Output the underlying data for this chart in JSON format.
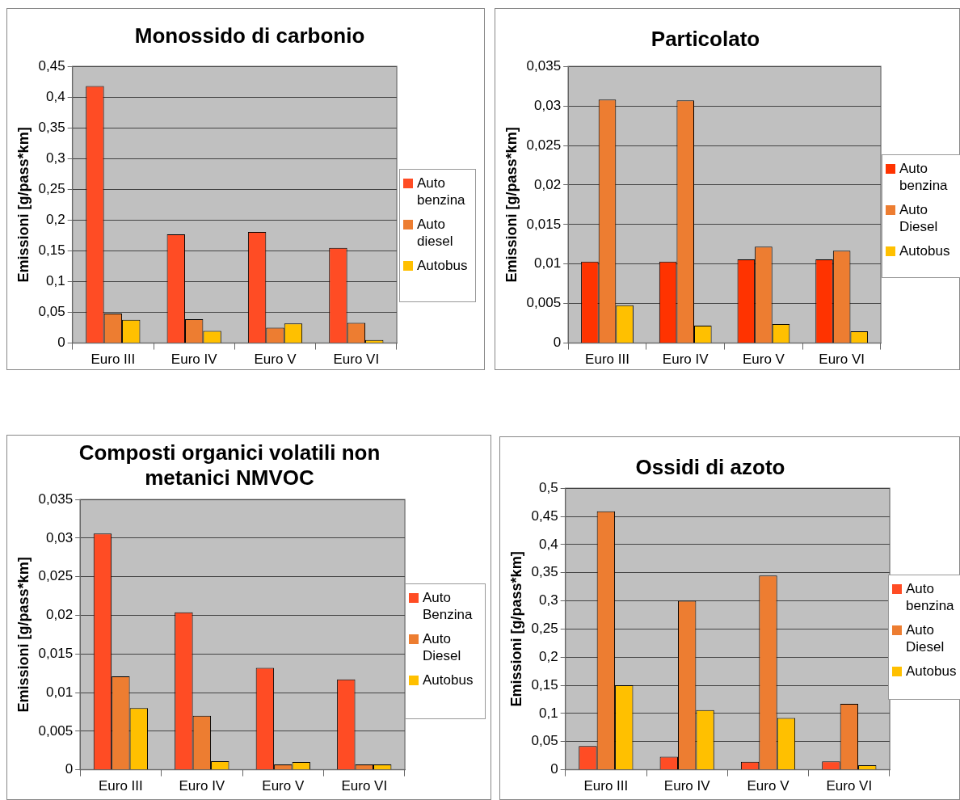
{
  "chart_data": [
    {
      "type": "bar",
      "title": "Monossido di carbonio",
      "ylabel": "Emissioni [g/pass*km]",
      "categories": [
        "Euro III",
        "Euro IV",
        "Euro V",
        "Euro VI"
      ],
      "series": [
        {
          "name": "Auto benzina",
          "color": "#ff4c24",
          "values": [
            0.418,
            0.177,
            0.181,
            0.155
          ]
        },
        {
          "name": "Auto diesel",
          "color": "#ed7d31",
          "values": [
            0.048,
            0.039,
            0.025,
            0.033
          ]
        },
        {
          "name": "Autobus",
          "color": "#ffc000",
          "values": [
            0.038,
            0.02,
            0.032,
            0.005
          ]
        }
      ],
      "ylim": [
        0,
        0.45
      ],
      "yticks": [
        {
          "value": 0,
          "label": "0"
        },
        {
          "value": 0.05,
          "label": "0,05"
        },
        {
          "value": 0.1,
          "label": "0,1"
        },
        {
          "value": 0.15,
          "label": "0,15"
        },
        {
          "value": 0.2,
          "label": "0,2"
        },
        {
          "value": 0.25,
          "label": "0,25"
        },
        {
          "value": 0.3,
          "label": "0,3"
        },
        {
          "value": 0.35,
          "label": "0,35"
        },
        {
          "value": 0.4,
          "label": "0,4"
        },
        {
          "value": 0.45,
          "label": "0,45"
        }
      ],
      "grid": "y",
      "legend": "right"
    },
    {
      "type": "bar",
      "title": "Particolato",
      "ylabel": "Emissioni [g/pass*km]",
      "categories": [
        "Euro III",
        "Euro IV",
        "Euro V",
        "Euro VI"
      ],
      "series": [
        {
          "name": "Auto benzina",
          "color": "#ff3300",
          "values": [
            0.0103,
            0.0103,
            0.0106,
            0.0106
          ]
        },
        {
          "name": "Auto Diesel",
          "color": "#ed7d31",
          "values": [
            0.0308,
            0.0307,
            0.0122,
            0.0117
          ]
        },
        {
          "name": "Autobus",
          "color": "#ffc000",
          "values": [
            0.0048,
            0.0022,
            0.0024,
            0.0015
          ]
        }
      ],
      "ylim": [
        0,
        0.035
      ],
      "yticks": [
        {
          "value": 0,
          "label": "0"
        },
        {
          "value": 0.005,
          "label": "0,005"
        },
        {
          "value": 0.01,
          "label": "0,01"
        },
        {
          "value": 0.015,
          "label": "0,015"
        },
        {
          "value": 0.02,
          "label": "0,02"
        },
        {
          "value": 0.025,
          "label": "0,025"
        },
        {
          "value": 0.03,
          "label": "0,03"
        },
        {
          "value": 0.035,
          "label": "0,035"
        }
      ],
      "grid": "y",
      "legend": "right"
    },
    {
      "type": "bar",
      "title": "Composti organici volatili non metanici NMVOC",
      "ylabel": "Emissioni [g/pass*km]",
      "categories": [
        "Euro III",
        "Euro IV",
        "Euro V",
        "Euro VI"
      ],
      "series": [
        {
          "name": "Auto Benzina",
          "color": "#ff4c24",
          "values": [
            0.0306,
            0.0204,
            0.0132,
            0.0117
          ]
        },
        {
          "name": "Auto Diesel",
          "color": "#ed7d31",
          "values": [
            0.0121,
            0.007,
            0.0007,
            0.0007
          ]
        },
        {
          "name": "Autobus",
          "color": "#ffc000",
          "values": [
            0.008,
            0.0011,
            0.001,
            0.0007
          ]
        }
      ],
      "ylim": [
        0,
        0.035
      ],
      "yticks": [
        {
          "value": 0,
          "label": "0"
        },
        {
          "value": 0.005,
          "label": "0,005"
        },
        {
          "value": 0.01,
          "label": "0,01"
        },
        {
          "value": 0.015,
          "label": "0,015"
        },
        {
          "value": 0.02,
          "label": "0,02"
        },
        {
          "value": 0.025,
          "label": "0,025"
        },
        {
          "value": 0.03,
          "label": "0,03"
        },
        {
          "value": 0.035,
          "label": "0,035"
        }
      ],
      "grid": "y",
      "legend": "right"
    },
    {
      "type": "bar",
      "title": "Ossidi di azoto",
      "ylabel": "Emissioni [g/pass*km]",
      "categories": [
        "Euro III",
        "Euro IV",
        "Euro V",
        "Euro VI"
      ],
      "series": [
        {
          "name": "Auto benzina",
          "color": "#ff4c24",
          "values": [
            0.042,
            0.023,
            0.014,
            0.015
          ]
        },
        {
          "name": "Auto Diesel",
          "color": "#ed7d31",
          "values": [
            0.459,
            0.3,
            0.345,
            0.117
          ]
        },
        {
          "name": "Autobus",
          "color": "#ffc000",
          "values": [
            0.15,
            0.106,
            0.092,
            0.008
          ]
        }
      ],
      "ylim": [
        0,
        0.5
      ],
      "yticks": [
        {
          "value": 0,
          "label": "0"
        },
        {
          "value": 0.05,
          "label": "0,05"
        },
        {
          "value": 0.1,
          "label": "0,1"
        },
        {
          "value": 0.15,
          "label": "0,15"
        },
        {
          "value": 0.2,
          "label": "0,2"
        },
        {
          "value": 0.25,
          "label": "0,25"
        },
        {
          "value": 0.3,
          "label": "0,3"
        },
        {
          "value": 0.35,
          "label": "0,35"
        },
        {
          "value": 0.4,
          "label": "0,4"
        },
        {
          "value": 0.45,
          "label": "0,45"
        },
        {
          "value": 0.5,
          "label": "0,5"
        }
      ],
      "grid": "y",
      "legend": "right"
    }
  ]
}
